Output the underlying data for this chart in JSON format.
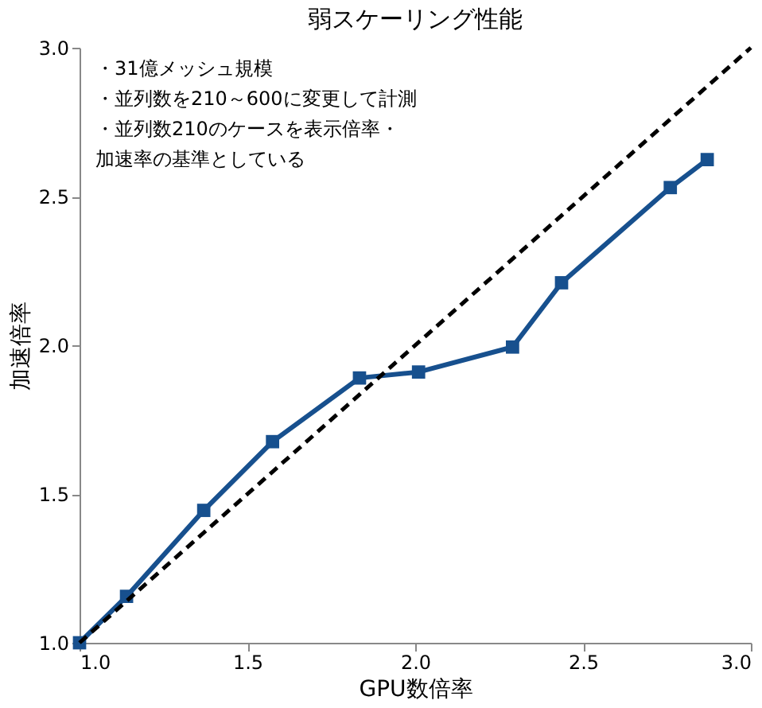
{
  "chart_data": {
    "type": "line",
    "title": "弱スケーリング性能",
    "xlabel": "GPU数倍率",
    "ylabel": "加速倍率",
    "xlim": [
      1,
      3
    ],
    "ylim": [
      1,
      3
    ],
    "xticks": [
      {
        "value": 1,
        "label": "1.0"
      },
      {
        "value": 1.5,
        "label": "1.5"
      },
      {
        "value": 2,
        "label": "2.0"
      },
      {
        "value": 2.5,
        "label": "2.5"
      },
      {
        "value": 3,
        "label": "3.0"
      }
    ],
    "yticks": [
      {
        "value": 1,
        "label": "1.0"
      },
      {
        "value": 1.5,
        "label": "1.5"
      },
      {
        "value": 2,
        "label": "2.0"
      },
      {
        "value": 2.5,
        "label": "2.5"
      },
      {
        "value": 3,
        "label": "3.0"
      }
    ],
    "marker": "square",
    "line_style": "solid",
    "series": [
      {
        "color": "#17508e",
        "x": [
          1.0,
          1.14,
          1.37,
          1.575,
          1.834,
          2.01,
          2.29,
          2.436,
          2.76,
          2.87
        ],
        "values": [
          1.0,
          1.156,
          1.445,
          1.676,
          1.89,
          1.91,
          1.994,
          2.21,
          2.53,
          2.624
        ]
      },
      {
        "color": "#000000",
        "line_style": "dashed",
        "marker": "none",
        "x": [
          1,
          3
        ],
        "values": [
          1,
          3
        ]
      }
    ],
    "annotations": [
      "・31億メッシュ規模",
      "・並列数を210～600に変更して計測",
      "・並列数210のケースを表示倍率・",
      " 加速率の基準としている"
    ]
  }
}
